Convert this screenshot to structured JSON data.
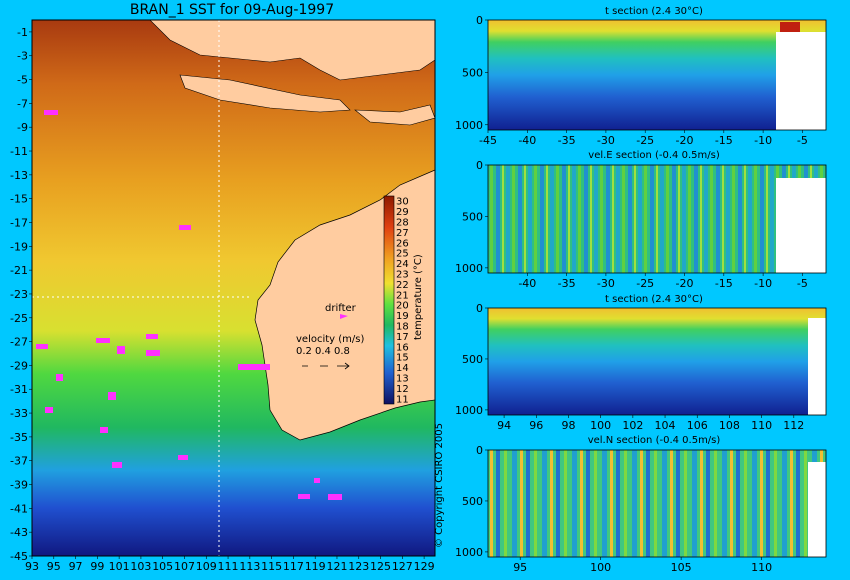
{
  "copyright": "© Copyright CSIRO 2005",
  "chart_data": [
    {
      "type": "heatmap",
      "title": "BRAN_1 SST for 09-Aug-1997",
      "xticks": [
        "93",
        "95",
        "97",
        "99",
        "101",
        "103",
        "105",
        "107",
        "109",
        "111",
        "113",
        "115",
        "117",
        "119",
        "121",
        "123",
        "125",
        "127",
        "129"
      ],
      "yticks": [
        "-1",
        "-3",
        "-5",
        "-7",
        "-9",
        "-11",
        "-13",
        "-15",
        "-17",
        "-19",
        "-21",
        "-23",
        "-25",
        "-27",
        "-29",
        "-31",
        "-33",
        "-35",
        "-37",
        "-39",
        "-41",
        "-43",
        "-45"
      ],
      "xlim": [
        93,
        130
      ],
      "ylim": [
        -45,
        0
      ],
      "colorbar": {
        "label": "temperature (°C)",
        "ticks": [
          "30",
          "29",
          "28",
          "27",
          "26",
          "25",
          "24",
          "23",
          "22",
          "21",
          "20",
          "19",
          "18",
          "17",
          "16",
          "15",
          "14",
          "13",
          "12",
          "11"
        ],
        "range": [
          11,
          30
        ]
      },
      "legend": {
        "drifter_label": "drifter",
        "velocity_label": "velocity (m/s)",
        "velocity_values": [
          "0.2",
          "0.4",
          "0.8"
        ]
      },
      "section_line_lon": 110.2,
      "section_line_lat": -23
    },
    {
      "type": "heatmap",
      "title": "t section (2.4      30°C)",
      "xticks": [
        "-45",
        "-40",
        "-35",
        "-30",
        "-25",
        "-20",
        "-15",
        "-10",
        "-5"
      ],
      "yticks": [
        "0",
        "500",
        "1000"
      ],
      "xlim": [
        -45,
        -2
      ],
      "ylim": [
        1050,
        0
      ]
    },
    {
      "type": "heatmap",
      "title": "vel.E section (-0.4      0.5m/s)",
      "xticks": [
        "-40",
        "-35",
        "-30",
        "-25",
        "-20",
        "-15",
        "-10",
        "-5"
      ],
      "yticks": [
        "0",
        "500",
        "1000"
      ],
      "xlim": [
        -45,
        -2
      ],
      "ylim": [
        1050,
        0
      ]
    },
    {
      "type": "heatmap",
      "title": "t section (2.4      30°C)",
      "xticks": [
        "94",
        "96",
        "98",
        "100",
        "102",
        "104",
        "106",
        "108",
        "110",
        "112"
      ],
      "yticks": [
        "0",
        "500",
        "1000"
      ],
      "xlim": [
        93,
        114
      ],
      "ylim": [
        1050,
        0
      ]
    },
    {
      "type": "heatmap",
      "title": "vel.N section (-0.4      0.5m/s)",
      "xticks": [
        "95",
        "100",
        "105",
        "110"
      ],
      "yticks": [
        "0",
        "500",
        "1000"
      ],
      "xlim": [
        93,
        114
      ],
      "ylim": [
        1050,
        0
      ]
    }
  ]
}
